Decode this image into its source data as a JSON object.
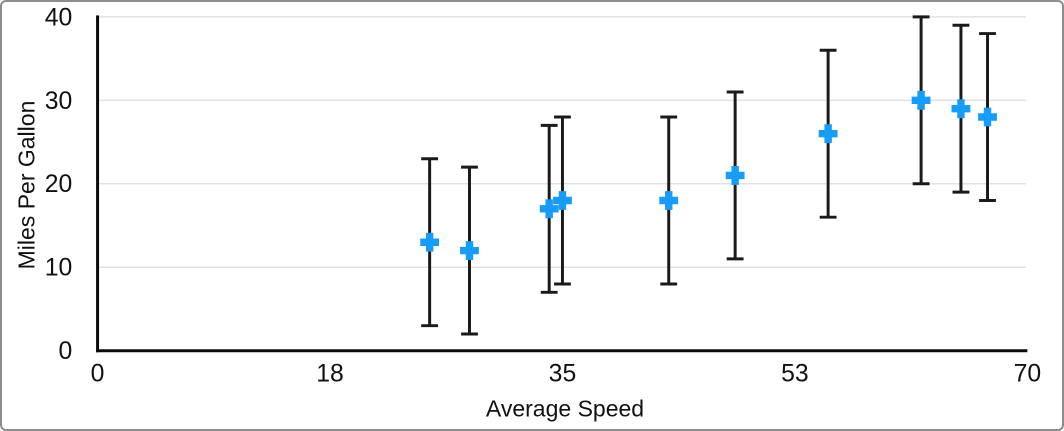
{
  "chart_data": {
    "type": "scatter",
    "title": "",
    "xlabel": "Average Speed",
    "ylabel": "Miles Per Gallon",
    "xlim": [
      0,
      70
    ],
    "ylim": [
      0,
      40
    ],
    "grid": "horizontal",
    "legend": "none",
    "x_ticks": [
      {
        "pos": 0,
        "label": "0"
      },
      {
        "pos": 17.5,
        "label": "18"
      },
      {
        "pos": 35,
        "label": "35"
      },
      {
        "pos": 52.5,
        "label": "53"
      },
      {
        "pos": 70,
        "label": "70"
      }
    ],
    "y_ticks": [
      {
        "pos": 0,
        "label": "0"
      },
      {
        "pos": 10,
        "label": "10"
      },
      {
        "pos": 20,
        "label": "20"
      },
      {
        "pos": 30,
        "label": "30"
      },
      {
        "pos": 40,
        "label": "40"
      }
    ],
    "series": [
      {
        "marker": "plus",
        "error_bars": {
          "direction": "vertical",
          "plus": 10,
          "minus": 10
        },
        "points": [
          {
            "x": 25,
            "y": 13
          },
          {
            "x": 28,
            "y": 12
          },
          {
            "x": 34,
            "y": 17
          },
          {
            "x": 35,
            "y": 18
          },
          {
            "x": 43,
            "y": 18
          },
          {
            "x": 48,
            "y": 21
          },
          {
            "x": 55,
            "y": 26
          },
          {
            "x": 62,
            "y": 30
          },
          {
            "x": 65,
            "y": 29
          },
          {
            "x": 67,
            "y": 28
          }
        ]
      }
    ]
  },
  "colors": {
    "marker": "#189cf9",
    "error_bar": "#1a1a1a",
    "axis": "#0a0a0a",
    "grid": "#e3e3e3",
    "text": "#111111",
    "background": "#ffffff",
    "frame_border": "#8d8d8d"
  }
}
